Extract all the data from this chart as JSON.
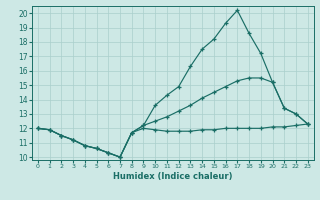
{
  "xlabel": "Humidex (Indice chaleur)",
  "bg_color": "#cde8e5",
  "line_color": "#1a6e66",
  "grid_color": "#aacfcc",
  "xlim": [
    -0.5,
    23.5
  ],
  "ylim": [
    9.8,
    20.5
  ],
  "xticks": [
    0,
    1,
    2,
    3,
    4,
    5,
    6,
    7,
    8,
    9,
    10,
    11,
    12,
    13,
    14,
    15,
    16,
    17,
    18,
    19,
    20,
    21,
    22,
    23
  ],
  "yticks": [
    10,
    11,
    12,
    13,
    14,
    15,
    16,
    17,
    18,
    19,
    20
  ],
  "line1_x": [
    0,
    1,
    2,
    3,
    4,
    5,
    6,
    7,
    8,
    9,
    10,
    11,
    12,
    13,
    14,
    15,
    16,
    17,
    18,
    19,
    20,
    21,
    22,
    23
  ],
  "line1_y": [
    12.0,
    11.9,
    11.5,
    11.2,
    10.8,
    10.6,
    10.3,
    10.0,
    11.7,
    12.2,
    13.6,
    14.3,
    14.9,
    16.3,
    17.5,
    18.2,
    19.3,
    20.2,
    18.6,
    17.2,
    15.2,
    13.4,
    13.0,
    12.3
  ],
  "line2_x": [
    0,
    1,
    2,
    3,
    4,
    5,
    6,
    7,
    8,
    9,
    10,
    11,
    12,
    13,
    14,
    15,
    16,
    17,
    18,
    19,
    20,
    21,
    22,
    23
  ],
  "line2_y": [
    12.0,
    11.9,
    11.5,
    11.2,
    10.8,
    10.6,
    10.3,
    10.0,
    11.7,
    12.2,
    12.5,
    12.8,
    13.2,
    13.6,
    14.1,
    14.5,
    14.9,
    15.3,
    15.5,
    15.5,
    15.2,
    13.4,
    13.0,
    12.3
  ],
  "line3_x": [
    0,
    1,
    2,
    3,
    4,
    5,
    6,
    7,
    8,
    9,
    10,
    11,
    12,
    13,
    14,
    15,
    16,
    17,
    18,
    19,
    20,
    21,
    22,
    23
  ],
  "line3_y": [
    12.0,
    11.9,
    11.5,
    11.2,
    10.8,
    10.6,
    10.3,
    10.0,
    11.7,
    12.0,
    11.9,
    11.8,
    11.8,
    11.8,
    11.9,
    11.9,
    12.0,
    12.0,
    12.0,
    12.0,
    12.1,
    12.1,
    12.2,
    12.3
  ]
}
